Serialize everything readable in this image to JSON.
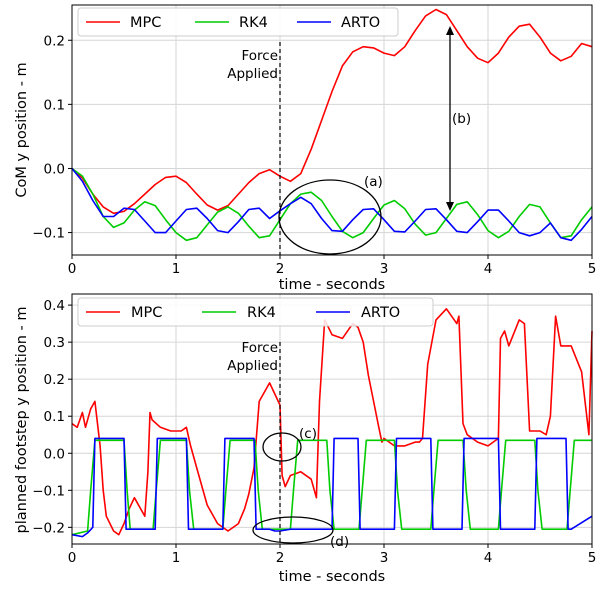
{
  "chart_data": [
    {
      "type": "line",
      "xlabel": "time - seconds",
      "ylabel": "CoM y position - m",
      "xlim": [
        0,
        5
      ],
      "ylim": [
        -0.135,
        0.255
      ],
      "xticks": [
        "0",
        "1",
        "2",
        "3",
        "4",
        "5"
      ],
      "yticks": [
        "−0.1",
        "0.0",
        "0.1",
        "0.2"
      ],
      "ytick_values": [
        -0.1,
        0.0,
        0.1,
        0.2
      ],
      "grid": true,
      "legend_position": "top-left, horizontal",
      "series": [
        {
          "name": "MPC",
          "color": "#ff0000",
          "x": [
            0,
            0.1,
            0.2,
            0.3,
            0.4,
            0.5,
            0.6,
            0.7,
            0.8,
            0.9,
            1.0,
            1.1,
            1.2,
            1.3,
            1.4,
            1.5,
            1.6,
            1.7,
            1.8,
            1.9,
            2.0,
            2.1,
            2.2,
            2.3,
            2.4,
            2.5,
            2.6,
            2.7,
            2.8,
            2.9,
            3.0,
            3.1,
            3.2,
            3.3,
            3.4,
            3.5,
            3.6,
            3.7,
            3.8,
            3.9,
            4.0,
            4.1,
            4.2,
            4.3,
            4.4,
            4.5,
            4.6,
            4.7,
            4.8,
            4.9,
            5.0
          ],
          "y": [
            0,
            -0.015,
            -0.04,
            -0.06,
            -0.07,
            -0.067,
            -0.055,
            -0.04,
            -0.025,
            -0.014,
            -0.012,
            -0.022,
            -0.04,
            -0.057,
            -0.065,
            -0.058,
            -0.04,
            -0.022,
            -0.008,
            -0.002,
            -0.012,
            -0.02,
            -0.008,
            0.03,
            0.075,
            0.12,
            0.16,
            0.182,
            0.19,
            0.188,
            0.18,
            0.176,
            0.19,
            0.215,
            0.238,
            0.248,
            0.24,
            0.215,
            0.19,
            0.172,
            0.165,
            0.18,
            0.205,
            0.222,
            0.225,
            0.205,
            0.18,
            0.168,
            0.175,
            0.195,
            0.19
          ]
        },
        {
          "name": "RK4",
          "color": "#00cc00",
          "x": [
            0,
            0.1,
            0.2,
            0.3,
            0.4,
            0.5,
            0.6,
            0.7,
            0.8,
            0.9,
            1.0,
            1.1,
            1.2,
            1.3,
            1.4,
            1.5,
            1.6,
            1.7,
            1.8,
            1.9,
            2.0,
            2.1,
            2.2,
            2.3,
            2.4,
            2.5,
            2.6,
            2.7,
            2.8,
            2.9,
            3.0,
            3.1,
            3.2,
            3.3,
            3.4,
            3.5,
            3.6,
            3.7,
            3.8,
            3.9,
            4.0,
            4.1,
            4.2,
            4.3,
            4.4,
            4.5,
            4.6,
            4.7,
            4.8,
            4.9,
            5.0
          ],
          "y": [
            0,
            -0.012,
            -0.04,
            -0.075,
            -0.092,
            -0.085,
            -0.065,
            -0.052,
            -0.058,
            -0.08,
            -0.1,
            -0.112,
            -0.108,
            -0.088,
            -0.068,
            -0.06,
            -0.07,
            -0.09,
            -0.108,
            -0.105,
            -0.08,
            -0.055,
            -0.04,
            -0.037,
            -0.05,
            -0.075,
            -0.098,
            -0.108,
            -0.1,
            -0.078,
            -0.057,
            -0.05,
            -0.063,
            -0.087,
            -0.104,
            -0.1,
            -0.078,
            -0.056,
            -0.052,
            -0.072,
            -0.097,
            -0.108,
            -0.098,
            -0.075,
            -0.056,
            -0.06,
            -0.085,
            -0.108,
            -0.105,
            -0.08,
            -0.06
          ]
        },
        {
          "name": "ARTO",
          "color": "#0000ff",
          "x": [
            0,
            0.1,
            0.2,
            0.3,
            0.4,
            0.5,
            0.6,
            0.7,
            0.8,
            0.9,
            1.0,
            1.1,
            1.2,
            1.3,
            1.4,
            1.5,
            1.6,
            1.7,
            1.8,
            1.9,
            2.0,
            2.1,
            2.2,
            2.3,
            2.4,
            2.5,
            2.6,
            2.7,
            2.8,
            2.9,
            3.0,
            3.1,
            3.2,
            3.3,
            3.4,
            3.5,
            3.6,
            3.7,
            3.8,
            3.9,
            4.0,
            4.1,
            4.2,
            4.3,
            4.4,
            4.5,
            4.6,
            4.7,
            4.8,
            4.9,
            5.0
          ],
          "y": [
            0,
            -0.02,
            -0.05,
            -0.075,
            -0.075,
            -0.062,
            -0.064,
            -0.082,
            -0.1,
            -0.1,
            -0.082,
            -0.064,
            -0.062,
            -0.078,
            -0.097,
            -0.1,
            -0.083,
            -0.064,
            -0.062,
            -0.078,
            -0.066,
            -0.055,
            -0.045,
            -0.055,
            -0.078,
            -0.097,
            -0.098,
            -0.08,
            -0.064,
            -0.063,
            -0.08,
            -0.098,
            -0.099,
            -0.082,
            -0.064,
            -0.063,
            -0.08,
            -0.098,
            -0.1,
            -0.083,
            -0.065,
            -0.065,
            -0.082,
            -0.1,
            -0.105,
            -0.1,
            -0.085,
            -0.108,
            -0.112,
            -0.095,
            -0.075
          ]
        }
      ],
      "annotations": [
        {
          "text": "Force\nApplied",
          "x": 2.0
        },
        {
          "text": "(a)"
        },
        {
          "text": "(b)"
        }
      ]
    },
    {
      "type": "line",
      "xlabel": "time - seconds",
      "ylabel": "planned footstep y position - m",
      "xlim": [
        0,
        5
      ],
      "ylim": [
        -0.245,
        0.43
      ],
      "xticks": [
        "0",
        "1",
        "2",
        "3",
        "4",
        "5"
      ],
      "yticks": [
        "−0.2",
        "−0.1",
        "0.0",
        "0.1",
        "0.2",
        "0.3",
        "0.4"
      ],
      "ytick_values": [
        -0.2,
        -0.1,
        0.0,
        0.1,
        0.2,
        0.3,
        0.4
      ],
      "grid": true,
      "legend_position": "top, horizontal",
      "series": [
        {
          "name": "MPC",
          "color": "#ff0000",
          "x": [
            0,
            0.05,
            0.1,
            0.13,
            0.18,
            0.22,
            0.27,
            0.3,
            0.33,
            0.4,
            0.45,
            0.5,
            0.55,
            0.6,
            0.7,
            0.73,
            0.75,
            0.77,
            0.85,
            0.95,
            1.05,
            1.1,
            1.14,
            1.2,
            1.3,
            1.4,
            1.5,
            1.6,
            1.66,
            1.7,
            1.75,
            1.8,
            1.9,
            2.0,
            2.02,
            2.05,
            2.1,
            2.2,
            2.3,
            2.35,
            2.38,
            2.43,
            2.5,
            2.6,
            2.7,
            2.75,
            2.8,
            2.85,
            2.9,
            2.95,
            2.98,
            3.0,
            3.1,
            3.2,
            3.3,
            3.34,
            3.37,
            3.42,
            3.5,
            3.6,
            3.7,
            3.72,
            3.76,
            3.8,
            3.9,
            4.0,
            4.05,
            4.1,
            4.12,
            4.16,
            4.2,
            4.3,
            4.35,
            4.4,
            4.5,
            4.56,
            4.6,
            4.65,
            4.7,
            4.8,
            4.9,
            4.97,
            5.0
          ],
          "y": [
            0.08,
            0.07,
            0.11,
            0.07,
            0.12,
            0.14,
            0.02,
            -0.1,
            -0.17,
            -0.21,
            -0.22,
            -0.19,
            -0.15,
            -0.12,
            -0.17,
            -0.05,
            0.11,
            0.09,
            0.07,
            0.06,
            0.06,
            0.07,
            0.02,
            -0.04,
            -0.14,
            -0.19,
            -0.21,
            -0.19,
            -0.15,
            -0.11,
            -0.04,
            0.14,
            0.19,
            0.13,
            -0.06,
            -0.09,
            -0.06,
            -0.05,
            -0.07,
            -0.12,
            0.14,
            0.36,
            0.32,
            0.31,
            0.35,
            0.34,
            0.3,
            0.21,
            0.14,
            0.07,
            0.03,
            0.04,
            0.02,
            0.02,
            0.03,
            0.03,
            0.04,
            0.24,
            0.36,
            0.39,
            0.35,
            0.37,
            0.08,
            0.05,
            0.03,
            0.02,
            0.03,
            0.04,
            0.31,
            0.33,
            0.29,
            0.36,
            0.35,
            0.06,
            0.06,
            0.05,
            0.1,
            0.37,
            0.29,
            0.29,
            0.22,
            0.05,
            0.33
          ]
        },
        {
          "name": "RK4",
          "color": "#00cc00",
          "x": [
            0,
            0.15,
            0.18,
            0.22,
            0.5,
            0.53,
            0.56,
            0.78,
            0.81,
            0.85,
            1.1,
            1.13,
            1.17,
            1.45,
            1.48,
            1.52,
            1.76,
            1.79,
            1.83,
            2.1,
            2.13,
            2.17,
            2.45,
            2.48,
            2.52,
            2.76,
            2.79,
            2.83,
            3.1,
            3.13,
            3.17,
            3.45,
            3.48,
            3.52,
            3.76,
            3.79,
            3.83,
            4.1,
            4.13,
            4.17,
            4.45,
            4.48,
            4.52,
            4.76,
            4.79,
            4.83,
            5.0
          ],
          "y": [
            -0.22,
            -0.21,
            -0.1,
            0.035,
            0.035,
            -0.1,
            -0.205,
            -0.205,
            -0.1,
            0.035,
            0.035,
            -0.1,
            -0.205,
            -0.205,
            -0.1,
            0.035,
            0.035,
            -0.1,
            -0.205,
            -0.205,
            -0.1,
            0.035,
            0.035,
            -0.1,
            -0.205,
            -0.205,
            -0.1,
            0.035,
            0.035,
            -0.1,
            -0.205,
            -0.205,
            -0.1,
            0.035,
            0.035,
            -0.1,
            -0.205,
            -0.205,
            -0.1,
            0.035,
            0.035,
            -0.1,
            -0.205,
            -0.205,
            -0.1,
            0.035,
            0.035
          ]
        },
        {
          "name": "ARTO",
          "color": "#0000ff",
          "x": [
            0,
            0.1,
            0.15,
            0.2,
            0.22,
            0.25,
            0.45,
            0.5,
            0.52,
            0.55,
            0.8,
            0.82,
            0.85,
            1.1,
            1.12,
            1.15,
            1.45,
            1.47,
            1.5,
            1.75,
            1.77,
            1.8,
            1.83,
            1.87,
            1.9,
            1.95,
            2.0,
            2.1,
            2.5,
            2.52,
            2.55,
            2.75,
            2.77,
            2.8,
            3.1,
            3.12,
            3.15,
            3.45,
            3.47,
            3.5,
            3.75,
            3.77,
            3.8,
            4.1,
            4.12,
            4.15,
            4.45,
            4.47,
            4.5,
            4.75,
            4.77,
            4.8,
            5.0
          ],
          "y": [
            -0.22,
            -0.225,
            -0.215,
            -0.2,
            0.04,
            0.04,
            0.04,
            0.04,
            -0.205,
            -0.205,
            -0.205,
            0.04,
            0.04,
            0.04,
            -0.205,
            -0.205,
            -0.205,
            0.04,
            0.04,
            0.04,
            -0.205,
            -0.205,
            -0.205,
            -0.205,
            -0.205,
            -0.21,
            -0.21,
            -0.205,
            -0.205,
            0.04,
            0.04,
            0.04,
            -0.205,
            -0.205,
            -0.205,
            0.04,
            0.04,
            0.04,
            -0.205,
            -0.205,
            -0.205,
            0.04,
            0.04,
            0.04,
            -0.205,
            -0.205,
            -0.205,
            0.04,
            0.04,
            0.04,
            -0.205,
            -0.205,
            -0.17
          ]
        }
      ],
      "annotations": [
        {
          "text": "Force\nApplied",
          "x": 2.0
        },
        {
          "text": "(c)"
        },
        {
          "text": "(d)"
        }
      ]
    }
  ]
}
